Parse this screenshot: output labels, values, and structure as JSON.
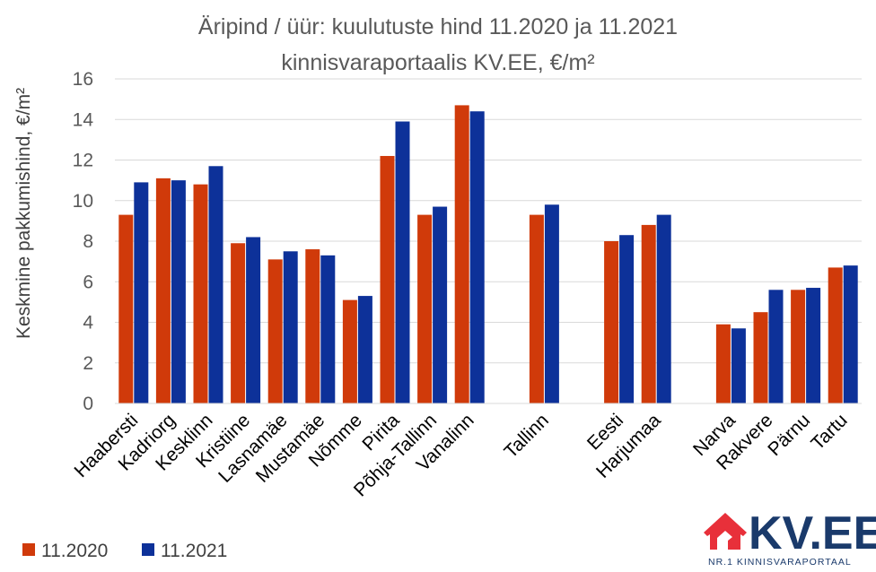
{
  "chart_data": {
    "type": "bar",
    "title_line1": "Äripind / üür: kuulutuste hind 11.2020 ja 11.2021",
    "title_line2": "kinnisvaraportaalis KV.EE, €/m²",
    "ylabel": "Keskmine pakkumishind, €/m²",
    "xlabel": "",
    "ylim": [
      0,
      16
    ],
    "yticks": [
      0,
      2,
      4,
      6,
      8,
      10,
      12,
      14,
      16
    ],
    "grid": true,
    "legend_position": "bottom-left",
    "slots": [
      "Haabersti",
      "Kadriorg",
      "Kesklinn",
      "Kristiine",
      "Lasnamäe",
      "Mustamäe",
      "Nõmme",
      "Pirita",
      "Põhja-Tallinn",
      "Vanalinn",
      "",
      "Tallinn",
      "",
      "Eesti",
      "Harjumaa",
      "",
      "Narva",
      "Rakvere",
      "Pärnu",
      "Tartu"
    ],
    "series": [
      {
        "name": "11.2020",
        "color": "#d03a0a",
        "values": [
          9.3,
          11.1,
          10.8,
          7.9,
          7.1,
          7.6,
          5.1,
          12.2,
          9.3,
          14.7,
          null,
          9.3,
          null,
          8.0,
          8.8,
          null,
          3.9,
          4.5,
          5.6,
          6.7
        ]
      },
      {
        "name": "11.2021",
        "color": "#0d3199",
        "values": [
          10.9,
          11.0,
          11.7,
          8.2,
          7.5,
          7.3,
          5.3,
          13.9,
          9.7,
          14.4,
          null,
          9.8,
          null,
          8.3,
          9.3,
          null,
          3.7,
          5.6,
          5.7,
          6.8
        ]
      }
    ]
  },
  "logo": {
    "main": "KV.EE",
    "tagline": "NR.1 KINNISVARAPORTAAL",
    "house_color": "#e8303a",
    "text_color": "#1a3a6b"
  }
}
